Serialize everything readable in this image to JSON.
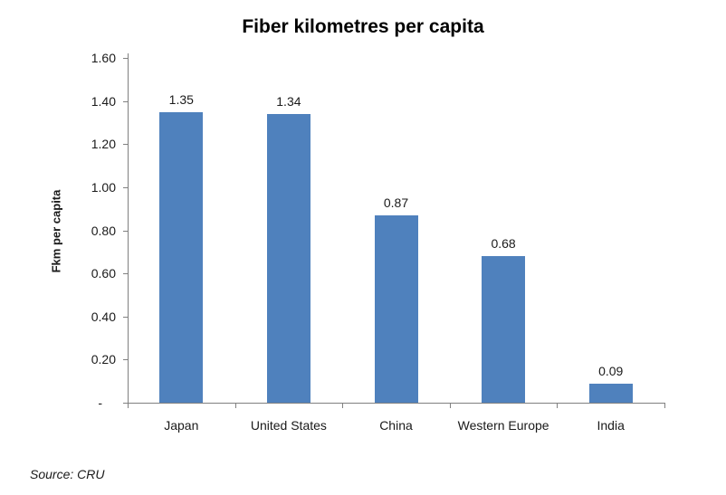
{
  "chart_data": {
    "type": "bar",
    "title": "Fiber kilometres per capita",
    "xlabel": "",
    "ylabel": "Fkm per capita",
    "categories": [
      "Japan",
      "United States",
      "China",
      "Western Europe",
      "India"
    ],
    "values": [
      1.35,
      1.34,
      0.87,
      0.68,
      0.09
    ],
    "value_labels": [
      "1.35",
      "1.34",
      "0.87",
      "0.68",
      "0.09"
    ],
    "ylim": [
      0,
      1.6
    ],
    "yticks": [
      {
        "value": 1.6,
        "label": "1.60"
      },
      {
        "value": 1.4,
        "label": "1.40"
      },
      {
        "value": 1.2,
        "label": "1.20"
      },
      {
        "value": 1.0,
        "label": "1.00"
      },
      {
        "value": 0.8,
        "label": "0.80"
      },
      {
        "value": 0.6,
        "label": "0.60"
      },
      {
        "value": 0.4,
        "label": "0.40"
      },
      {
        "value": 0.2,
        "label": "0.20"
      },
      {
        "value": 0.0,
        "label": "-"
      }
    ],
    "grid": false,
    "legend": "none",
    "bar_color": "#4F81BD",
    "axis_color": "#808080",
    "text_color": "#1a1a1a"
  },
  "footer": {
    "source": "Source: CRU"
  }
}
